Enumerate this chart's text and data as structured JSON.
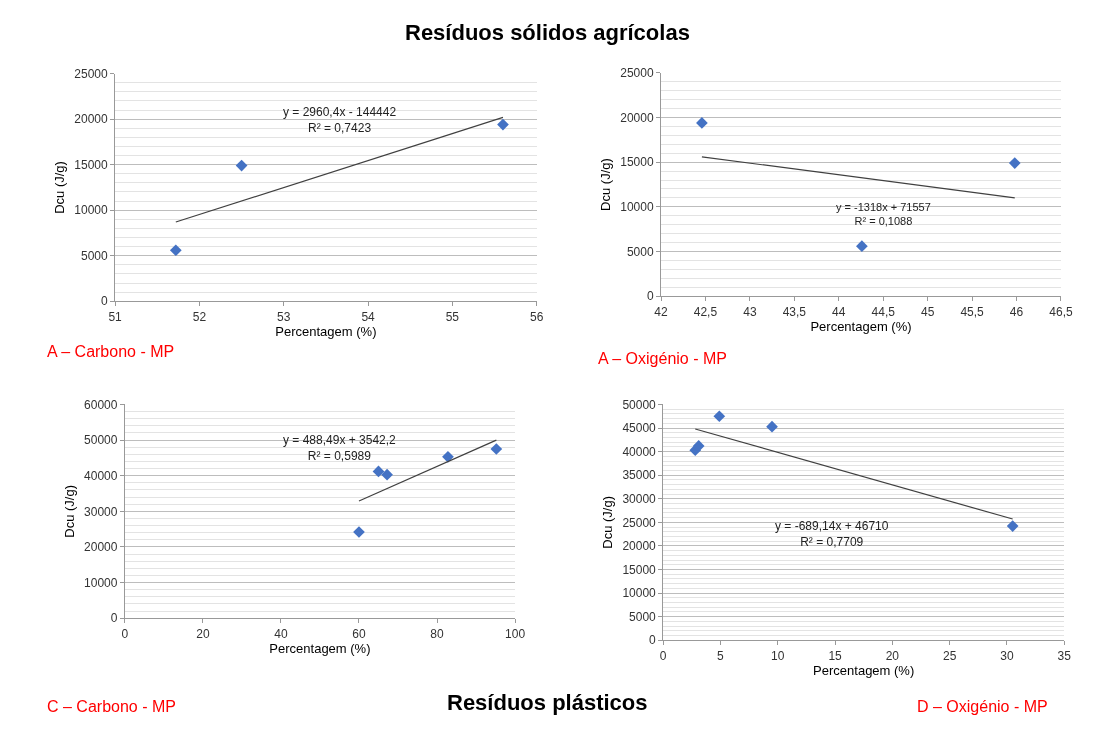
{
  "chart_data": [
    {
      "type": "scatter",
      "title": "A – Carbono - MP",
      "xlabel": "Percentagem (%)",
      "ylabel": "Dcu (J/g)",
      "grid": "y",
      "xlim": [
        51,
        56
      ],
      "xticks": [
        51,
        52,
        53,
        54,
        55,
        56
      ],
      "ylim": [
        0,
        25000
      ],
      "yticks": [
        0,
        5000,
        10000,
        15000,
        20000,
        25000
      ],
      "series": [
        {
          "color": "#4472c4",
          "marker": "diamond",
          "x": [
            51.72,
            52.5,
            55.6
          ],
          "values": [
            5600,
            14900,
            19400
          ]
        },
        {
          "type": "line",
          "color": "#404040",
          "x": [
            51.72,
            55.6
          ],
          "values": [
            8700,
            20200
          ]
        }
      ],
      "annotations": [
        "Resíduos sólidos agrícolas",
        "y = 2960,4x - 144442\nR² = 0,7423"
      ]
    },
    {
      "type": "scatter",
      "title": "A – Oxigénio - MP",
      "xlabel": "Percentagem (%)",
      "ylabel": "Dcu (J/g)",
      "grid": "y",
      "xlim": [
        42,
        46.5
      ],
      "xticks": [
        42,
        {
          "value": 42.5,
          "label": "42,5"
        },
        43,
        {
          "value": 43.5,
          "label": "43,5"
        },
        44,
        {
          "value": 44.5,
          "label": "44,5"
        },
        45,
        {
          "value": 45.5,
          "label": "45,5"
        },
        46,
        {
          "value": 46.5,
          "label": "46,5"
        }
      ],
      "ylim": [
        0,
        25000
      ],
      "yticks": [
        0,
        5000,
        10000,
        15000,
        20000,
        25000
      ],
      "series": [
        {
          "color": "#4472c4",
          "marker": "diamond",
          "x": [
            42.46,
            44.26,
            45.98
          ],
          "values": [
            19400,
            5600,
            14900
          ]
        },
        {
          "type": "line",
          "color": "#404040",
          "x": [
            42.46,
            45.98
          ],
          "values": [
            15600,
            11000
          ]
        }
      ],
      "annotations": [
        "y = -1318x + 71557\nR² = 0,1088"
      ]
    },
    {
      "type": "scatter",
      "title": "C – Carbono - MP",
      "xlabel": "Percentagem (%)",
      "ylabel": "Dcu (J/g)",
      "grid": "y",
      "xlim": [
        0,
        100
      ],
      "xticks": [
        0,
        20,
        40,
        60,
        80,
        100
      ],
      "ylim": [
        0,
        60000
      ],
      "yticks": [
        0,
        10000,
        20000,
        30000,
        40000,
        50000,
        60000
      ],
      "series": [
        {
          "color": "#4472c4",
          "marker": "diamond",
          "x": [
            60,
            65,
            67.2,
            82.8,
            95.2
          ],
          "values": [
            24200,
            41200,
            40300,
            45300,
            47500
          ]
        },
        {
          "type": "line",
          "color": "#404040",
          "x": [
            60,
            95.2
          ],
          "values": [
            32900,
            50000
          ]
        }
      ],
      "annotations": [
        "Resíduos plásticos",
        "y = 488,49x + 3542,2\nR² = 0,5989"
      ]
    },
    {
      "type": "scatter",
      "title": "D – Oxigénio - MP",
      "xlabel": "Percentagem (%)",
      "ylabel": "Dcu (J/g)",
      "grid": "y",
      "xlim": [
        0,
        35
      ],
      "xticks": [
        0,
        5,
        10,
        15,
        20,
        25,
        30,
        35
      ],
      "ylim": [
        0,
        50000
      ],
      "yticks": [
        0,
        5000,
        10000,
        15000,
        20000,
        25000,
        30000,
        35000,
        40000,
        45000,
        50000
      ],
      "series": [
        {
          "color": "#4472c4",
          "marker": "diamond",
          "x": [
            2.8,
            3.1,
            4.9,
            9.5,
            30.5
          ],
          "values": [
            40300,
            41200,
            47500,
            45300,
            24200
          ]
        },
        {
          "type": "line",
          "color": "#404040",
          "x": [
            2.8,
            30.5
          ],
          "values": [
            44800,
            25700
          ]
        }
      ],
      "annotations": [
        "y = -689,14x + 46710\nR² = 0,7709"
      ]
    }
  ]
}
